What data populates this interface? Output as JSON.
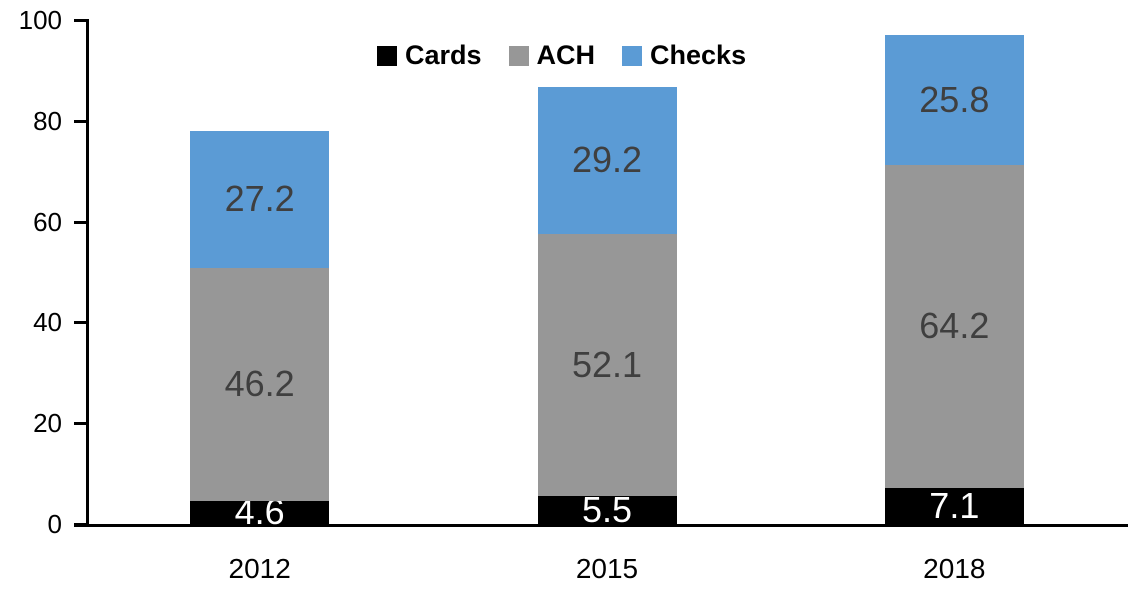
{
  "chart_data": {
    "type": "bar",
    "stacked": true,
    "title": "",
    "xlabel": "",
    "ylabel": "",
    "categories": [
      "2012",
      "2015",
      "2018"
    ],
    "series": [
      {
        "name": "Cards",
        "color": "#000000",
        "label_color": "#FFFFFF",
        "values": [
          4.6,
          5.5,
          7.1
        ]
      },
      {
        "name": "ACH",
        "color": "#979797",
        "label_color": "#3F3F3F",
        "values": [
          46.2,
          52.1,
          64.2
        ]
      },
      {
        "name": "Checks",
        "color": "#5B9BD5",
        "label_color": "#3F3F3F",
        "values": [
          27.2,
          29.2,
          25.8
        ]
      }
    ],
    "ylim": [
      0,
      100
    ],
    "yticks": [
      0,
      20,
      40,
      60,
      80,
      100
    ],
    "grid": false,
    "legend_position": "top-center",
    "bar_value_labels_shown": true
  },
  "colors": {
    "axis": "#000000",
    "background": "#FFFFFF"
  }
}
